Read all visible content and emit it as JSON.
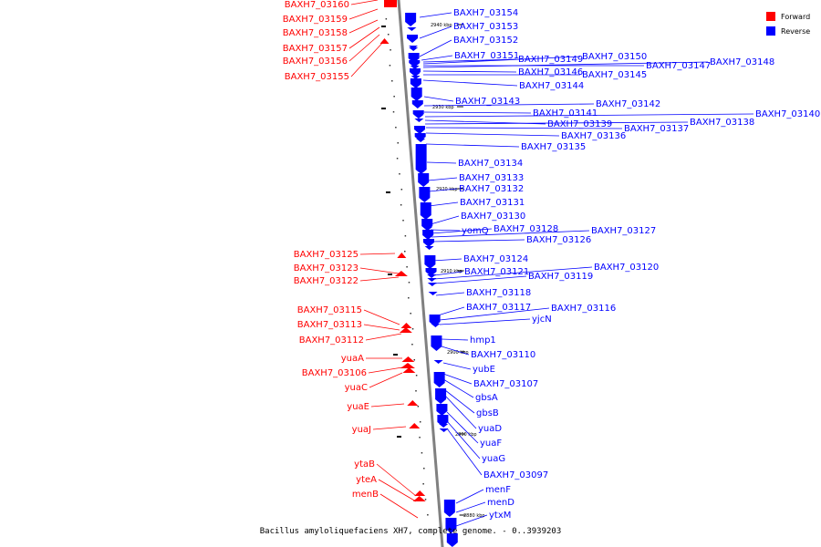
{
  "colors": {
    "forward": "#ff0000",
    "reverse": "#0000ff",
    "backbone": "#808080"
  },
  "legend": [
    {
      "label": "Forward",
      "color": "#ff0000"
    },
    {
      "label": "Reverse",
      "color": "#0000ff"
    }
  ],
  "caption": "Bacillus amyloliquefaciens XH7, complete genome. - 0..3939203",
  "scale_ticks": [
    "2940 kbp",
    "2930 kbp",
    "2920 kbp",
    "2910 kbp",
    "2900 kbp",
    "2890 kbp",
    "2880 kbp"
  ],
  "forward_labels": [
    "BAXH7_03160",
    "BAXH7_03159",
    "BAXH7_03158",
    "BAXH7_03157",
    "BAXH7_03156",
    "BAXH7_03155",
    "BAXH7_03125",
    "BAXH7_03123",
    "BAXH7_03122",
    "BAXH7_03115",
    "BAXH7_03113",
    "BAXH7_03112",
    "yuaA",
    "BAXH7_03106",
    "yuaC",
    "yuaE",
    "yuaJ",
    "ytaB",
    "yteA",
    "menB"
  ],
  "reverse_labels": [
    "BAXH7_03154",
    "BAXH7_03153",
    "BAXH7_03152",
    "BAXH7_03151",
    "BAXH7_03149",
    "BAXH7_03150",
    "BAXH7_03147",
    "BAXH7_03148",
    "BAXH7_03146",
    "BAXH7_03145",
    "BAXH7_03144",
    "BAXH7_03143",
    "BAXH7_03142",
    "BAXH7_03141",
    "BAXH7_03140",
    "BAXH7_03139",
    "BAXH7_03138",
    "BAXH7_03137",
    "BAXH7_03136",
    "BAXH7_03135",
    "BAXH7_03134",
    "BAXH7_03133",
    "BAXH7_03132",
    "BAXH7_03131",
    "BAXH7_03130",
    "yomQ",
    "BAXH7_03128",
    "BAXH7_03127",
    "BAXH7_03126",
    "BAXH7_03124",
    "BAXH7_03121",
    "BAXH7_03120",
    "BAXH7_03119",
    "BAXH7_03118",
    "BAXH7_03117",
    "BAXH7_03116",
    "yjcN",
    "hmp1",
    "BAXH7_03110",
    "yubE",
    "BAXH7_03107",
    "gbsA",
    "gbsB",
    "yuaD",
    "yuaF",
    "yuaG",
    "BAXH7_03097",
    "menF",
    "menD",
    "ytxM"
  ]
}
